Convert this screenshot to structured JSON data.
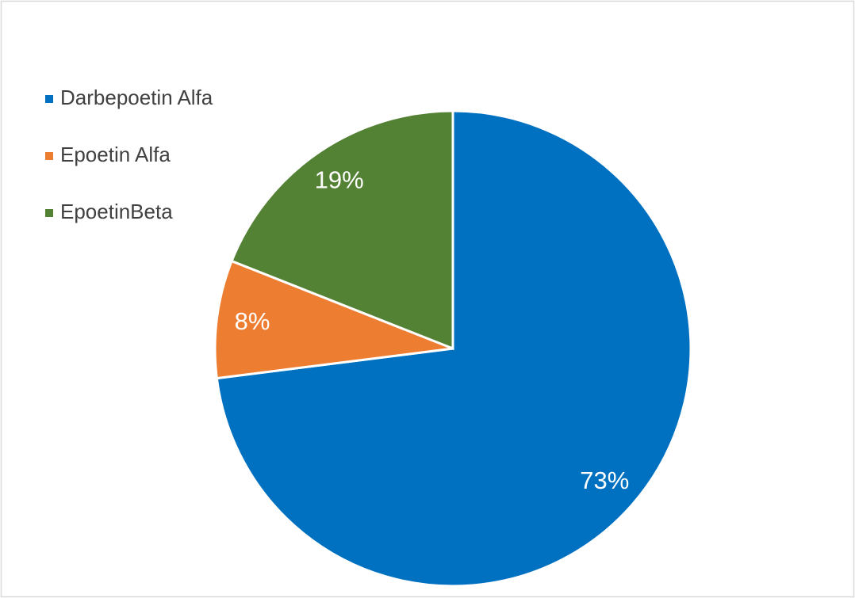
{
  "chart_data": {
    "type": "pie",
    "categories": [
      "Darbepoetin Alfa",
      "Epoetin Alfa",
      "EpoetinBeta"
    ],
    "values": [
      73,
      8,
      19
    ],
    "value_labels": [
      "73%",
      "8%",
      "19%"
    ],
    "colors": [
      "#0070c0",
      "#ed7d31",
      "#548235"
    ],
    "legend": "top-left"
  }
}
